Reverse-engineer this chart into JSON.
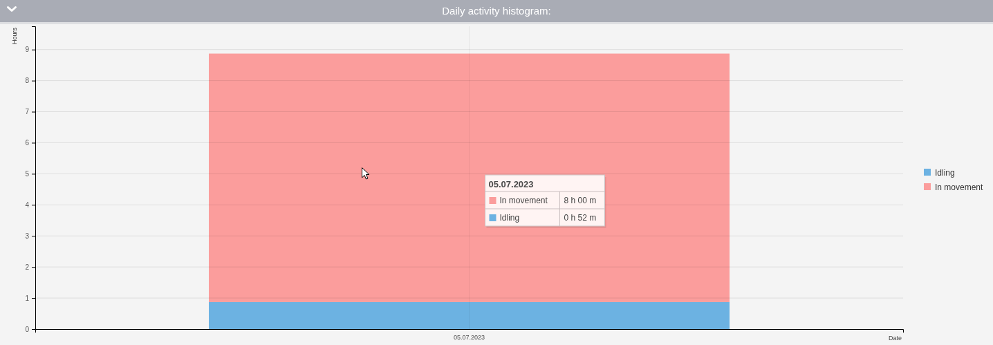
{
  "chart_data": {
    "type": "bar",
    "title": "Daily activity histogram:",
    "xlabel": "Date",
    "ylabel": "Hours",
    "categories": [
      "05.07.2023"
    ],
    "series": [
      {
        "name": "Idling",
        "color": "#6cb2e2",
        "values": [
          0.87
        ]
      },
      {
        "name": "In movement",
        "color": "#fb9d9c",
        "values": [
          8.0
        ]
      }
    ],
    "annotations": [
      "8 h 00 m",
      "0 h 52 m"
    ],
    "stacked": true,
    "ylim": [
      0,
      9.75
    ],
    "yticks": [
      0,
      1,
      2,
      3,
      4,
      5,
      6,
      7,
      8,
      9
    ],
    "grid": true,
    "legend": "right"
  }
}
